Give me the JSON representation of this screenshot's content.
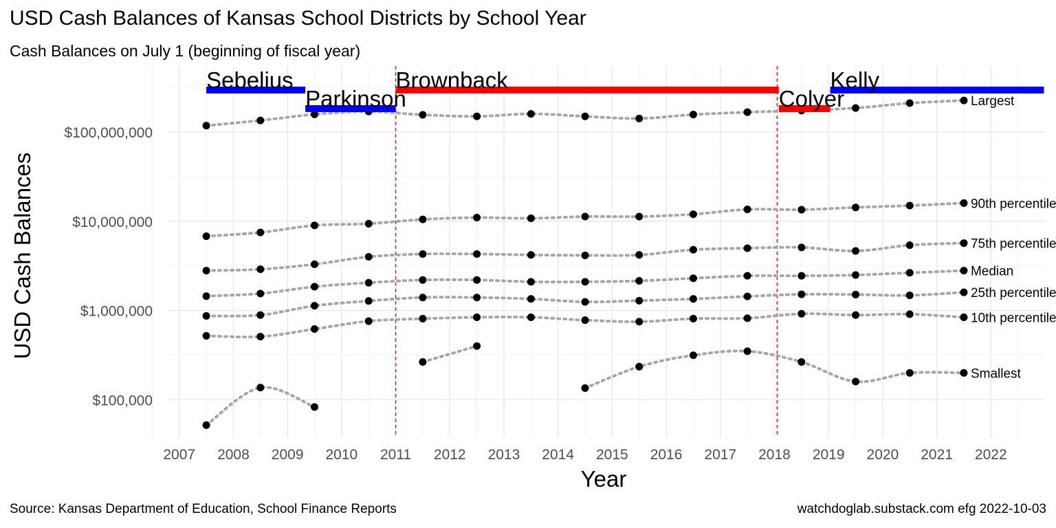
{
  "title": "USD Cash Balances of Kansas School Districts by School Year",
  "subtitle": "Cash Balances on July 1 (beginning of fiscal year)",
  "caption_left": "Source:  Kansas Department of Education, School Finance Reports",
  "caption_right": "watchdoglab.substack.com  efg 2022-10-03",
  "chart_data": {
    "type": "scatter",
    "xlabel": "Year",
    "ylabel": "USD Cash Balances",
    "x_scale": "linear",
    "y_scale": "log10",
    "xlim": [
      2006.8,
      2023.0
    ],
    "ylim": [
      38000,
      550000000
    ],
    "x_ticks": [
      2007,
      2008,
      2009,
      2010,
      2011,
      2012,
      2013,
      2014,
      2015,
      2016,
      2017,
      2018,
      2019,
      2020,
      2021,
      2022
    ],
    "x_tick_labels": [
      "2007",
      "2008",
      "2009",
      "2010",
      "2011",
      "2012",
      "2013",
      "2014",
      "2015",
      "2016",
      "2017",
      "2018",
      "2019",
      "2020",
      "2021",
      "2022"
    ],
    "y_ticks": [
      100000,
      1000000,
      10000000,
      100000000
    ],
    "y_tick_labels": [
      "$100,000",
      "$1,000,000",
      "$10,000,000",
      "$100,000,000"
    ],
    "grid": true,
    "point_color": "#000000",
    "line_color": "#a6a6a6",
    "vlines": [
      {
        "x": 2011.0,
        "color": "#d62728"
      },
      {
        "x": 2018.05,
        "color": "#d62728"
      }
    ],
    "governors": [
      {
        "name": "Sebelius",
        "start": 2007.5,
        "end": 2009.33,
        "level": "upper",
        "color": "#0000ff"
      },
      {
        "name": "Parkinson",
        "start": 2009.33,
        "end": 2011.0,
        "level": "lower",
        "color": "#0000ff"
      },
      {
        "name": "Brownback",
        "start": 2011.0,
        "end": 2018.08,
        "level": "upper",
        "color": "#ff0000"
      },
      {
        "name": "Colyer",
        "start": 2018.08,
        "end": 2019.03,
        "level": "lower",
        "color": "#ff0000"
      },
      {
        "name": "Kelly",
        "start": 2019.03,
        "end": 2022.98,
        "level": "upper",
        "color": "#0000ff"
      }
    ],
    "x": [
      2007.5,
      2008.5,
      2009.5,
      2010.5,
      2011.5,
      2012.5,
      2013.5,
      2014.5,
      2015.5,
      2016.5,
      2017.5,
      2018.5,
      2019.5,
      2020.5,
      2021.5
    ],
    "series": [
      {
        "name": "Largest",
        "values": [
          118000000,
          135000000,
          158000000,
          170000000,
          156000000,
          150000000,
          160000000,
          150000000,
          142000000,
          157000000,
          167000000,
          174000000,
          186000000,
          211000000,
          226000000
        ]
      },
      {
        "name": "90th percentile",
        "values": [
          6800000,
          7500000,
          9000000,
          9400000,
          10500000,
          11000000,
          10800000,
          11300000,
          11300000,
          12000000,
          13600000,
          13500000,
          14300000,
          15000000,
          16000000
        ]
      },
      {
        "name": "75th percentile",
        "values": [
          2800000,
          2900000,
          3300000,
          4000000,
          4300000,
          4300000,
          4200000,
          4150000,
          4200000,
          4800000,
          5000000,
          5100000,
          4650000,
          5400000,
          5700000
        ]
      },
      {
        "name": "Median",
        "values": [
          1450000,
          1550000,
          1850000,
          2050000,
          2200000,
          2200000,
          2100000,
          2100000,
          2150000,
          2300000,
          2450000,
          2450000,
          2500000,
          2650000,
          2800000
        ]
      },
      {
        "name": "25th percentile",
        "values": [
          870000,
          890000,
          1130000,
          1280000,
          1400000,
          1400000,
          1350000,
          1250000,
          1290000,
          1350000,
          1440000,
          1520000,
          1510000,
          1480000,
          1600000
        ]
      },
      {
        "name": "10th percentile",
        "values": [
          520000,
          510000,
          620000,
          760000,
          810000,
          840000,
          840000,
          780000,
          750000,
          810000,
          820000,
          920000,
          890000,
          910000,
          840000
        ]
      },
      {
        "name": "Smallest",
        "values": [
          52000,
          137000,
          83000,
          null,
          265000,
          400000,
          null,
          135000,
          235000,
          315000,
          350000,
          265000,
          160000,
          200000,
          200000
        ]
      }
    ]
  }
}
